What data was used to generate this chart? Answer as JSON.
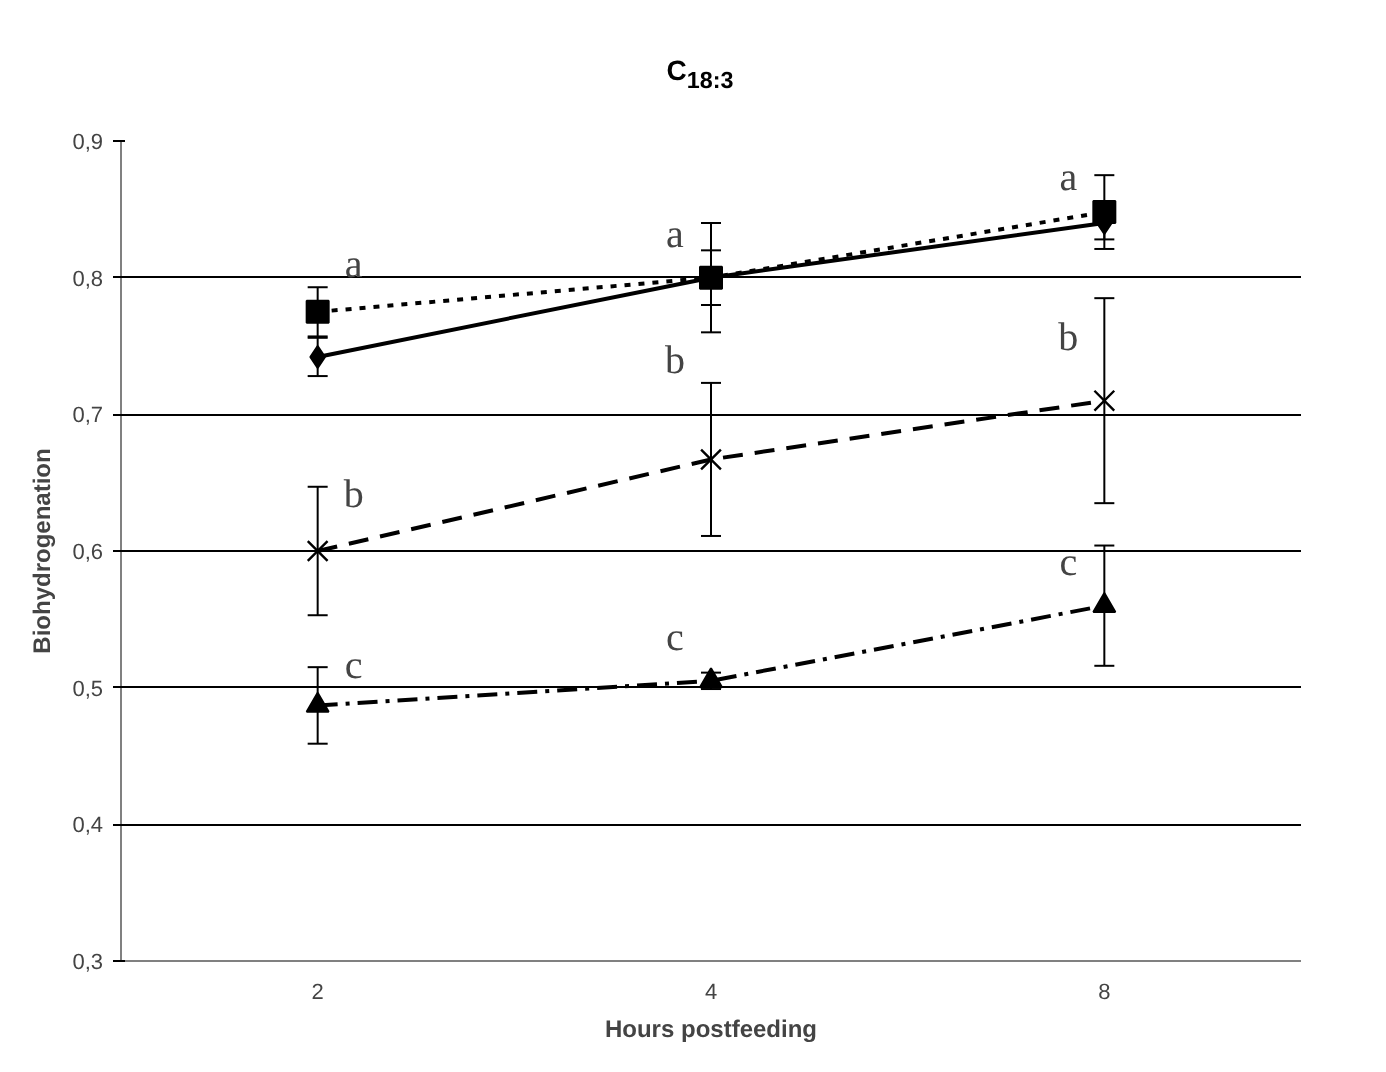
{
  "chart_data": {
    "type": "line",
    "title": "C$_{18:3}$",
    "xlabel": "Hours postfeeding",
    "ylabel": "Biohydrogenation",
    "categories": [
      "2",
      "4",
      "8"
    ],
    "ylim": [
      0.3,
      0.9
    ],
    "yticks": [
      {
        "value": 0.3,
        "label": "0,3"
      },
      {
        "value": 0.4,
        "label": "0,4"
      },
      {
        "value": 0.5,
        "label": "0,5"
      },
      {
        "value": 0.6,
        "label": "0,6"
      },
      {
        "value": 0.7,
        "label": "0,7"
      },
      {
        "value": 0.8,
        "label": "0,8"
      },
      {
        "value": 0.9,
        "label": "0,9"
      }
    ],
    "grid": "y",
    "series": [
      {
        "color": "#000000",
        "marker": "diamond",
        "line_style": "solid",
        "values": [
          0.742,
          0.8,
          0.84
        ],
        "errors": [
          0.014,
          0.02,
          0.012
        ]
      },
      {
        "color": "#000000",
        "marker": "square",
        "line_style": "dotted",
        "values": [
          0.775,
          0.8,
          0.848
        ],
        "errors": [
          0.018,
          0.04,
          0.027
        ]
      },
      {
        "color": "#000000",
        "marker": "cross",
        "line_style": "dashed",
        "values": [
          0.6,
          0.667,
          0.71
        ],
        "errors": [
          0.047,
          0.056,
          0.075
        ]
      },
      {
        "color": "#000000",
        "marker": "triangle",
        "line_style": "dashdot",
        "values": [
          0.487,
          0.505,
          0.56
        ],
        "errors": [
          0.028,
          0.006,
          0.044
        ]
      }
    ],
    "annotations": [
      {
        "text": "a",
        "x": "2",
        "y": 0.793
      },
      {
        "text": "a",
        "x": "4",
        "y": 0.815
      },
      {
        "text": "a",
        "x": "8",
        "y": 0.857
      },
      {
        "text": "b",
        "x": "2",
        "y": 0.625
      },
      {
        "text": "b",
        "x": "4",
        "y": 0.723
      },
      {
        "text": "b",
        "x": "8",
        "y": 0.74
      },
      {
        "text": "c",
        "x": "2",
        "y": 0.5
      },
      {
        "text": "c",
        "x": "4",
        "y": 0.52
      },
      {
        "text": "c",
        "x": "8",
        "y": 0.575
      }
    ]
  }
}
